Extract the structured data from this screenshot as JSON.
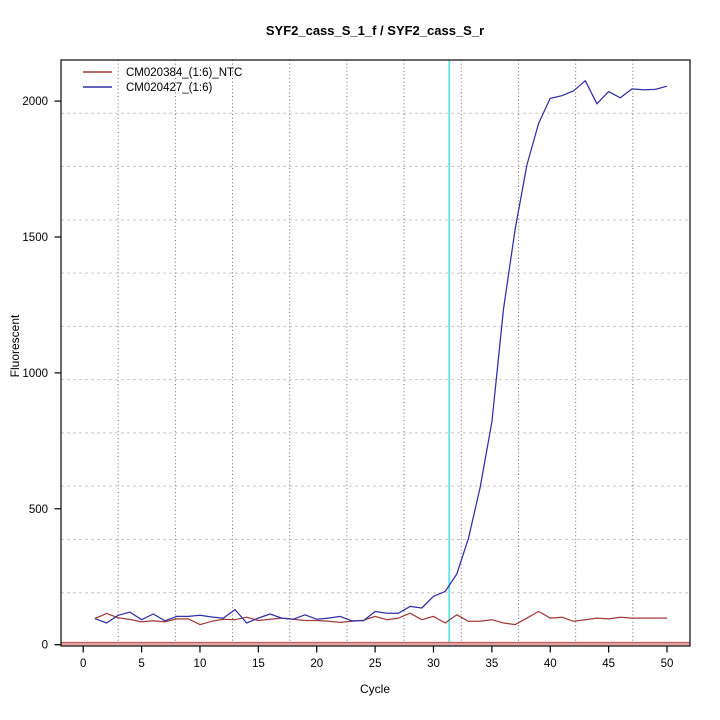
{
  "chart_data": {
    "type": "line",
    "title": "SYF2_cass_S_1_f / SYF2_cass_S_r",
    "xlabel": "Cycle",
    "ylabel": "Fluorescent",
    "xlim": [
      0,
      50
    ],
    "ylim": [
      0,
      2150
    ],
    "x_ticks": [
      0,
      5,
      10,
      15,
      20,
      25,
      30,
      35,
      40,
      45,
      50
    ],
    "y_ticks": [
      0,
      500,
      1000,
      1500,
      2000
    ],
    "grid": {
      "divisions": 11,
      "horizontal_style": "dashed",
      "vertical_style": "dotted",
      "horizontal_color": "#c9c9c9",
      "vertical_color": "#6e6e6e"
    },
    "legend_position": "top-left",
    "ct_marker": {
      "cycle": 31.35,
      "color": "#5fe3e3"
    },
    "baseline_line": {
      "value": 0,
      "color": "#e8a0a0",
      "edge_color": "#b95e5e"
    },
    "x": [
      1,
      2,
      3,
      4,
      5,
      6,
      7,
      8,
      9,
      10,
      11,
      12,
      13,
      14,
      15,
      16,
      17,
      18,
      19,
      20,
      21,
      22,
      23,
      24,
      25,
      26,
      27,
      28,
      29,
      30,
      31,
      32,
      33,
      34,
      35,
      36,
      37,
      38,
      39,
      40,
      41,
      42,
      43,
      44,
      45,
      46,
      47,
      48,
      49,
      50
    ],
    "series": [
      {
        "name": "CM020384_(1:6)_NTC",
        "color": "#a23b3b",
        "values": [
          96,
          115,
          99,
          93,
          84,
          88,
          84,
          95,
          95,
          74,
          86,
          94,
          92,
          101,
          89,
          94,
          98,
          94,
          89,
          89,
          86,
          82,
          86,
          90,
          104,
          92,
          98,
          116,
          92,
          104,
          80,
          110,
          86,
          86,
          92,
          80,
          74,
          98,
          122,
          98,
          101,
          86,
          92,
          98,
          95,
          101,
          98,
          98,
          98,
          98
        ]
      },
      {
        "name": "CM020427_(1:6)",
        "color": "#3030a8",
        "values": [
          96,
          80,
          108,
          120,
          92,
          113,
          88,
          104,
          104,
          108,
          102,
          98,
          129,
          80,
          98,
          113,
          98,
          94,
          110,
          94,
          98,
          104,
          88,
          88,
          122,
          116,
          116,
          141,
          135,
          178,
          196,
          260,
          392,
          580,
          820,
          1235,
          1530,
          1765,
          1918,
          2010,
          2020,
          2038,
          2075,
          1990,
          2035,
          2012,
          2045,
          2042,
          2043,
          2055
        ]
      }
    ]
  }
}
